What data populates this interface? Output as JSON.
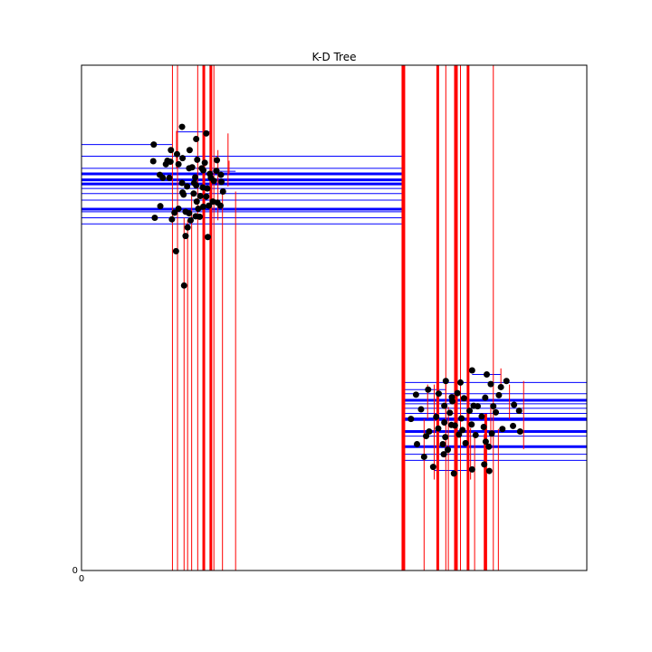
{
  "chart_data": {
    "type": "scatter",
    "title": "K-D Tree",
    "xlabel": "",
    "ylabel": "",
    "xlim": [
      0,
      100
    ],
    "ylim": [
      0,
      100
    ],
    "x_tick_labels": [
      "0"
    ],
    "y_tick_labels": [
      "0"
    ],
    "grid": false,
    "colors": {
      "points": "#000000",
      "vertical_splits": "#ff0000",
      "horizontal_splits": "#0000ff",
      "frame": "#000000"
    },
    "points": [
      [
        14.3,
        84.3
      ],
      [
        17.7,
        83.2
      ],
      [
        19.9,
        87.8
      ],
      [
        22.7,
        85.4
      ],
      [
        24.7,
        86.5
      ],
      [
        21.4,
        83.2
      ],
      [
        19.2,
        80.4
      ],
      [
        23.8,
        79.6
      ],
      [
        24.1,
        79.2
      ],
      [
        26.8,
        81.2
      ],
      [
        27.6,
        78.3
      ],
      [
        25.6,
        77.7
      ],
      [
        19.9,
        76.7
      ],
      [
        20.0,
        74.8
      ],
      [
        20.9,
        76.0
      ],
      [
        22.3,
        76.7
      ],
      [
        17.6,
        80.9
      ],
      [
        17.4,
        77.7
      ],
      [
        16.1,
        77.7
      ],
      [
        15.5,
        78.3
      ],
      [
        16.7,
        80.4
      ],
      [
        17.0,
        81.1
      ],
      [
        18.9,
        82.4
      ],
      [
        20.0,
        81.6
      ],
      [
        21.9,
        79.8
      ],
      [
        22.5,
        77.8
      ],
      [
        22.7,
        76.2
      ],
      [
        24.0,
        75.8
      ],
      [
        24.9,
        75.6
      ],
      [
        25.4,
        78.5
      ],
      [
        26.7,
        79.1
      ],
      [
        27.7,
        76.9
      ],
      [
        28.0,
        75.0
      ],
      [
        26.0,
        73.0
      ],
      [
        25.2,
        72.2
      ],
      [
        24.1,
        72.0
      ],
      [
        23.1,
        71.6
      ],
      [
        22.6,
        70.1
      ],
      [
        21.6,
        69.3
      ],
      [
        20.6,
        71.0
      ],
      [
        19.2,
        71.6
      ],
      [
        18.4,
        70.8
      ],
      [
        17.9,
        69.5
      ],
      [
        15.6,
        72.1
      ],
      [
        14.5,
        69.8
      ],
      [
        14.2,
        81.0
      ],
      [
        21.3,
        79.6
      ],
      [
        22.9,
        81.3
      ],
      [
        24.4,
        80.7
      ],
      [
        26.2,
        77.1
      ],
      [
        25.0,
        66.0
      ],
      [
        20.6,
        66.2
      ],
      [
        20.3,
        56.4
      ],
      [
        18.7,
        63.2
      ],
      [
        21.3,
        70.7
      ],
      [
        22.2,
        74.6
      ],
      [
        23.5,
        74.1
      ],
      [
        24.7,
        74.0
      ],
      [
        26.9,
        72.8
      ],
      [
        27.5,
        72.2
      ],
      [
        20.2,
        74.4
      ],
      [
        23.4,
        70.0
      ],
      [
        21.0,
        67.9
      ],
      [
        22.8,
        73.0
      ],
      [
        65.2,
        30.0
      ],
      [
        67.2,
        31.9
      ],
      [
        68.6,
        35.8
      ],
      [
        70.7,
        35.0
      ],
      [
        72.1,
        37.5
      ],
      [
        73.4,
        33.5
      ],
      [
        75.0,
        37.2
      ],
      [
        77.3,
        39.6
      ],
      [
        81.0,
        36.9
      ],
      [
        80.2,
        38.8
      ],
      [
        82.6,
        34.7
      ],
      [
        83.0,
        36.3
      ],
      [
        84.1,
        37.5
      ],
      [
        86.8,
        27.5
      ],
      [
        85.4,
        28.6
      ],
      [
        83.3,
        28.0
      ],
      [
        81.2,
        27.1
      ],
      [
        79.6,
        28.4
      ],
      [
        77.2,
        28.9
      ],
      [
        75.4,
        27.8
      ],
      [
        73.2,
        28.8
      ],
      [
        71.8,
        29.3
      ],
      [
        70.2,
        30.4
      ],
      [
        68.2,
        26.6
      ],
      [
        66.4,
        25.0
      ],
      [
        67.8,
        22.5
      ],
      [
        69.6,
        20.5
      ],
      [
        72.5,
        23.9
      ],
      [
        73.7,
        19.2
      ],
      [
        77.3,
        20.0
      ],
      [
        79.7,
        21.0
      ],
      [
        80.7,
        19.7
      ],
      [
        80.6,
        24.5
      ],
      [
        80.0,
        25.5
      ],
      [
        78.0,
        26.8
      ],
      [
        76.0,
        25.2
      ],
      [
        74.7,
        26.9
      ],
      [
        73.9,
        28.7
      ],
      [
        71.8,
        32.6
      ],
      [
        70.6,
        28.1
      ],
      [
        68.8,
        27.5
      ],
      [
        72.0,
        26.4
      ],
      [
        75.2,
        30.1
      ],
      [
        76.8,
        31.6
      ],
      [
        72.9,
        31.2
      ],
      [
        78.4,
        32.5
      ],
      [
        79.9,
        34.2
      ],
      [
        85.6,
        32.8
      ],
      [
        86.6,
        31.6
      ],
      [
        82.0,
        31.3
      ],
      [
        81.5,
        32.5
      ],
      [
        79.2,
        30.5
      ],
      [
        77.6,
        32.6
      ],
      [
        75.7,
        34.1
      ],
      [
        74.4,
        35.1
      ],
      [
        73.3,
        34.3
      ],
      [
        66.2,
        34.8
      ],
      [
        71.5,
        25.0
      ],
      [
        71.7,
        23.0
      ]
    ],
    "vertical_splits": [
      {
        "x": 63.7,
        "y0": 0,
        "y1": 100,
        "w": 4
      },
      {
        "x": 25.6,
        "y0": 0,
        "y1": 100,
        "w": 3
      },
      {
        "x": 24.2,
        "y0": 0,
        "y1": 100,
        "w": 3
      },
      {
        "x": 26.2,
        "y0": 0,
        "y1": 100,
        "w": 1
      },
      {
        "x": 19.0,
        "y0": 0,
        "y1": 100,
        "w": 1
      },
      {
        "x": 18.0,
        "y0": 0,
        "y1": 100,
        "w": 1
      },
      {
        "x": 23.0,
        "y0": 0,
        "y1": 100,
        "w": 1
      },
      {
        "x": 21.0,
        "y0": 0,
        "y1": 69.3,
        "w": 1
      },
      {
        "x": 27.9,
        "y0": 0,
        "y1": 75.6,
        "w": 1
      },
      {
        "x": 30.5,
        "y0": 0,
        "y1": 75.0,
        "w": 1
      },
      {
        "x": 20.3,
        "y0": 0,
        "y1": 69.8,
        "w": 1
      },
      {
        "x": 21.8,
        "y0": 0,
        "y1": 74.5,
        "w": 1
      },
      {
        "x": 27.0,
        "y0": 69.3,
        "y1": 83.2,
        "w": 1
      },
      {
        "x": 29.0,
        "y0": 76.0,
        "y1": 86.5,
        "w": 1
      },
      {
        "x": 18.8,
        "y0": 79.6,
        "y1": 87.0,
        "w": 1
      },
      {
        "x": 29.2,
        "y0": 78.5,
        "y1": 81.1,
        "w": 1
      },
      {
        "x": 25.6,
        "y0": 83.0,
        "y1": 87.8,
        "w": 1
      },
      {
        "x": 74.1,
        "y0": 0,
        "y1": 100,
        "w": 4
      },
      {
        "x": 70.5,
        "y0": 0,
        "y1": 100,
        "w": 3
      },
      {
        "x": 75.0,
        "y0": 0,
        "y1": 100,
        "w": 1
      },
      {
        "x": 72.1,
        "y0": 0,
        "y1": 100,
        "w": 1
      },
      {
        "x": 81.5,
        "y0": 0,
        "y1": 100,
        "w": 1
      },
      {
        "x": 76.5,
        "y0": 0,
        "y1": 100,
        "w": 3
      },
      {
        "x": 67.8,
        "y0": 0,
        "y1": 30.0,
        "w": 1
      },
      {
        "x": 72.6,
        "y0": 0,
        "y1": 32.4,
        "w": 1
      },
      {
        "x": 77.8,
        "y0": 0,
        "y1": 27.5,
        "w": 1
      },
      {
        "x": 79.7,
        "y0": 0,
        "y1": 27.0,
        "w": 1
      },
      {
        "x": 80.0,
        "y0": 0,
        "y1": 31.0,
        "w": 3
      },
      {
        "x": 82.5,
        "y0": 0,
        "y1": 28.0,
        "w": 1
      },
      {
        "x": 69.8,
        "y0": 18.0,
        "y1": 36.8,
        "w": 1
      },
      {
        "x": 68.5,
        "y0": 30.0,
        "y1": 36.8,
        "w": 1
      },
      {
        "x": 77.0,
        "y0": 18.0,
        "y1": 28.2,
        "w": 1
      },
      {
        "x": 72.1,
        "y0": 28.5,
        "y1": 37.2,
        "w": 1
      },
      {
        "x": 87.5,
        "y0": 24.0,
        "y1": 37.5,
        "w": 1
      },
      {
        "x": 81.0,
        "y0": 24.0,
        "y1": 33.0,
        "w": 1
      },
      {
        "x": 84.7,
        "y0": 30.0,
        "y1": 36.8,
        "w": 1
      },
      {
        "x": 83.0,
        "y0": 36.8,
        "y1": 40.0,
        "w": 1
      }
    ],
    "horizontal_splits": [
      {
        "y": 76.5,
        "x0": 0,
        "x1": 63.7,
        "w": 3
      },
      {
        "y": 71.5,
        "x0": 0,
        "x1": 63.7,
        "w": 3
      },
      {
        "y": 78.5,
        "x0": 0,
        "x1": 63.7,
        "w": 3
      },
      {
        "y": 75.6,
        "x0": 0,
        "x1": 63.7,
        "w": 1
      },
      {
        "y": 74.6,
        "x0": 0,
        "x1": 63.7,
        "w": 1
      },
      {
        "y": 73.3,
        "x0": 0,
        "x1": 63.7,
        "w": 1
      },
      {
        "y": 77.3,
        "x0": 0,
        "x1": 63.7,
        "w": 3
      },
      {
        "y": 82.0,
        "x0": 0,
        "x1": 63.7,
        "w": 1
      },
      {
        "y": 79.6,
        "x0": 0,
        "x1": 63.7,
        "w": 1
      },
      {
        "y": 68.6,
        "x0": 0,
        "x1": 63.7,
        "w": 1
      },
      {
        "y": 71.0,
        "x0": 0,
        "x1": 63.7,
        "w": 1
      },
      {
        "y": 69.8,
        "x0": 0,
        "x1": 63.7,
        "w": 1
      },
      {
        "y": 84.3,
        "x0": 0,
        "x1": 18.0,
        "w": 1
      },
      {
        "y": 86.8,
        "x0": 18.8,
        "x1": 25.6,
        "w": 1
      },
      {
        "y": 79.0,
        "x0": 25.6,
        "x1": 30.5,
        "w": 1
      },
      {
        "y": 30.0,
        "x0": 63.7,
        "x1": 100,
        "w": 3
      },
      {
        "y": 24.5,
        "x0": 63.7,
        "x1": 100,
        "w": 3
      },
      {
        "y": 33.7,
        "x0": 63.7,
        "x1": 100,
        "w": 3
      },
      {
        "y": 32.1,
        "x0": 63.7,
        "x1": 100,
        "w": 1
      },
      {
        "y": 29.7,
        "x0": 63.7,
        "x1": 100,
        "w": 1
      },
      {
        "y": 27.5,
        "x0": 63.7,
        "x1": 100,
        "w": 3
      },
      {
        "y": 21.8,
        "x0": 63.7,
        "x1": 100,
        "w": 1
      },
      {
        "y": 35.0,
        "x0": 63.7,
        "x1": 100,
        "w": 1
      },
      {
        "y": 26.6,
        "x0": 63.7,
        "x1": 100,
        "w": 1
      },
      {
        "y": 37.2,
        "x0": 63.7,
        "x1": 100,
        "w": 1
      },
      {
        "y": 31.1,
        "x0": 63.7,
        "x1": 100,
        "w": 1
      },
      {
        "y": 33.0,
        "x0": 63.7,
        "x1": 100,
        "w": 1
      },
      {
        "y": 23.0,
        "x0": 63.7,
        "x1": 100,
        "w": 1
      },
      {
        "y": 19.8,
        "x0": 69.8,
        "x1": 77.0,
        "w": 1
      },
      {
        "y": 35.8,
        "x0": 63.7,
        "x1": 72.1,
        "w": 1
      },
      {
        "y": 38.8,
        "x0": 77.3,
        "x1": 83.0,
        "w": 1
      }
    ]
  }
}
